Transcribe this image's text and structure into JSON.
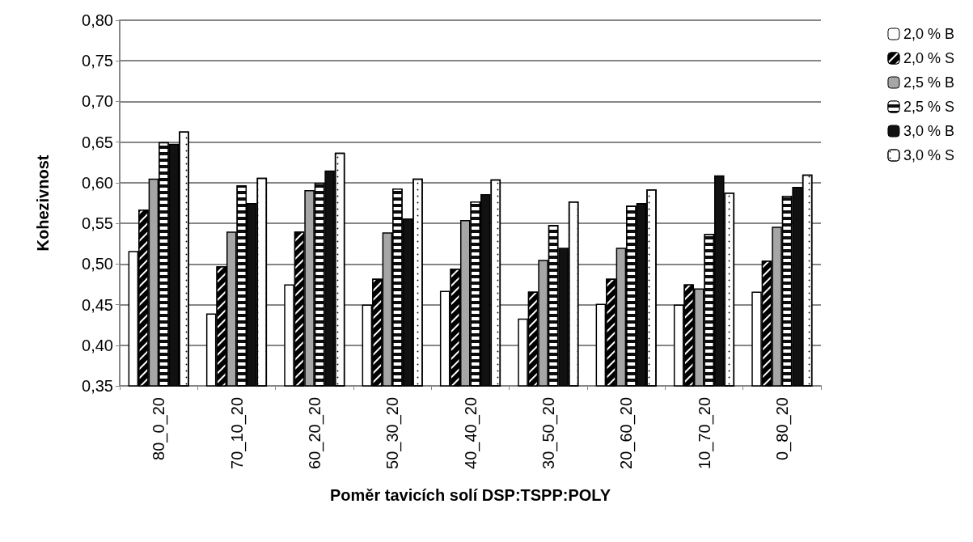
{
  "chart_data": {
    "type": "bar",
    "xlabel": "Poměr tavicích solí DSP:TSPP:POLY",
    "ylabel": "Kohezivnost",
    "categories": [
      "80_0_20",
      "70_10_20",
      "60_20_20",
      "50_30_20",
      "40_40_20",
      "30_50_20",
      "20_60_20",
      "10_70_20",
      "0_80_20"
    ],
    "series": [
      {
        "name": "2,0 % B",
        "color": "#ffffff",
        "values": [
          0.516,
          0.439,
          0.475,
          0.45,
          0.467,
          0.433,
          0.451,
          0.45,
          0.466
        ]
      },
      {
        "name": "2,0 % S",
        "color": "#000000",
        "values": [
          0.567,
          0.497,
          0.54,
          0.482,
          0.494,
          0.466,
          0.482,
          0.475,
          0.504
        ]
      },
      {
        "name": "2,5 % B",
        "color": "#a6a6a6",
        "values": [
          0.605,
          0.54,
          0.591,
          0.539,
          0.554,
          0.505,
          0.52,
          0.47,
          0.546
        ]
      },
      {
        "name": "2,5 % S",
        "color": "#0d0d0d",
        "values": [
          0.65,
          0.597,
          0.6,
          0.593,
          0.577,
          0.548,
          0.572,
          0.537,
          0.584
        ]
      },
      {
        "name": "3,0 % B",
        "color": "#111111",
        "values": [
          0.648,
          0.575,
          0.615,
          0.556,
          0.586,
          0.52,
          0.575,
          0.609,
          0.595
        ]
      },
      {
        "name": "3,0 % S",
        "color": "#fefefe",
        "values": [
          0.663,
          0.606,
          0.637,
          0.605,
          0.604,
          0.577,
          0.592,
          0.588,
          0.61
        ]
      }
    ],
    "ylim": [
      0.35,
      0.8
    ],
    "yticks": [
      {
        "value": 0.35,
        "label": "0,35"
      },
      {
        "value": 0.4,
        "label": "0,40"
      },
      {
        "value": 0.45,
        "label": "0,45"
      },
      {
        "value": 0.5,
        "label": "0,50"
      },
      {
        "value": 0.55,
        "label": "0,55"
      },
      {
        "value": 0.6,
        "label": "0,60"
      },
      {
        "value": 0.65,
        "label": "0,65"
      },
      {
        "value": 0.7,
        "label": "0,70"
      },
      {
        "value": 0.75,
        "label": "0,75"
      },
      {
        "value": 0.8,
        "label": "0,80"
      }
    ],
    "grid": "y",
    "legend": "right"
  }
}
